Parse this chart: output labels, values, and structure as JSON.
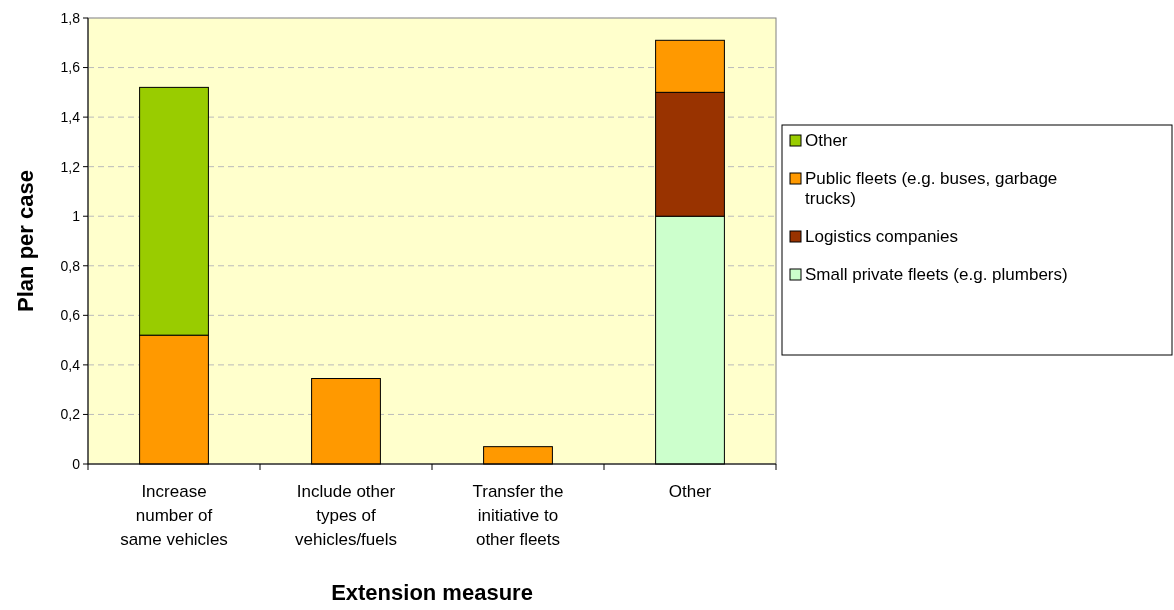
{
  "chart_data": {
    "type": "bar",
    "stacked": true,
    "xlabel": "Extension measure",
    "ylabel": "Plan per case",
    "categories": [
      "Increase number of same vehicles",
      "Include other types of vehicles/fuels",
      "Transfer the initiative to other fleets",
      "Other"
    ],
    "series": [
      {
        "name": "Small private fleets (e.g. plumbers)",
        "color": "#ccffcc",
        "values": [
          null,
          null,
          null,
          1.0
        ]
      },
      {
        "name": "Logistics companies",
        "color": "#993300",
        "values": [
          null,
          null,
          null,
          0.5
        ]
      },
      {
        "name": "Public fleets (e.g. buses, garbage trucks)",
        "color": "#ff9900",
        "values": [
          0.52,
          0.345,
          0.07,
          0.21
        ]
      },
      {
        "name": "Other",
        "color": "#99cc00",
        "values": [
          1.0,
          null,
          null,
          null
        ]
      }
    ],
    "ylim": [
      0,
      1.8
    ],
    "yticks": [
      0,
      {
        "value": 0.2,
        "label": "0,2"
      },
      {
        "value": 0.4,
        "label": "0,4"
      },
      {
        "value": 0.6,
        "label": "0,6"
      },
      {
        "value": 0.8,
        "label": "0,8"
      },
      1,
      {
        "value": 1.2,
        "label": "1,2"
      },
      {
        "value": 1.4,
        "label": "1,4"
      },
      {
        "value": 1.6,
        "label": "1,6"
      },
      {
        "value": 1.8,
        "label": "1,8"
      }
    ],
    "grid": "y",
    "legend": "right"
  }
}
